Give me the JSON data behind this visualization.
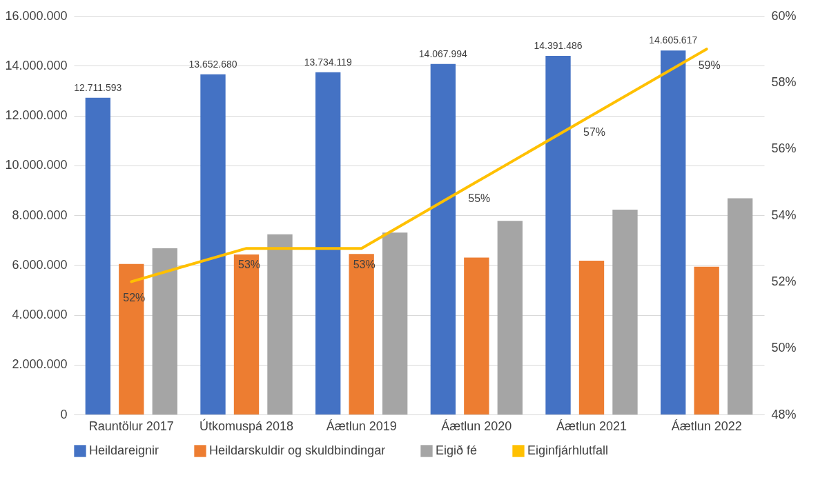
{
  "chart_data": {
    "type": "bar",
    "categories": [
      "Rauntölur 2017",
      "Útkomuspá 2018",
      "Áætlun 2019",
      "Áætlun 2020",
      "Áætlun 2021",
      "Áætlun 2022"
    ],
    "series": [
      {
        "name": "Heildareignir",
        "color": "#4472c4",
        "values": [
          12711593,
          13652680,
          13734119,
          14067994,
          14391486,
          14605617
        ],
        "value_labels": [
          "12.711.593",
          "13.652.680",
          "13.734.119",
          "14.067.994",
          "14.391.486",
          "14.605.617"
        ]
      },
      {
        "name": "Heildarskuldir og skuldbindingar",
        "color": "#ed7d31",
        "values": [
          6040000,
          6420000,
          6440000,
          6300000,
          6170000,
          5930000
        ]
      },
      {
        "name": "Eigið fé",
        "color": "#a5a5a5",
        "values": [
          6670000,
          7230000,
          7300000,
          7770000,
          8220000,
          8680000
        ]
      },
      {
        "name": "Eiginfjárhlutfall",
        "type": "line",
        "axis": "y2",
        "color": "#ffc000",
        "values": [
          52,
          53,
          53,
          55,
          57,
          59
        ],
        "value_labels": [
          "52%",
          "53%",
          "53%",
          "55%",
          "57%",
          "59%"
        ]
      }
    ],
    "ylim": [
      0,
      16000000
    ],
    "yticks": [
      {
        "value": 0,
        "label": "0"
      },
      {
        "value": 2000000,
        "label": "2.000.000"
      },
      {
        "value": 4000000,
        "label": "4.000.000"
      },
      {
        "value": 6000000,
        "label": "6.000.000"
      },
      {
        "value": 8000000,
        "label": "8.000.000"
      },
      {
        "value": 10000000,
        "label": "10.000.000"
      },
      {
        "value": 12000000,
        "label": "12.000.000"
      },
      {
        "value": 14000000,
        "label": "14.000.000"
      },
      {
        "value": 16000000,
        "label": "16.000.000"
      }
    ],
    "y2lim": [
      48,
      60
    ],
    "y2ticks": [
      {
        "value": 48,
        "label": "48%"
      },
      {
        "value": 50,
        "label": "50%"
      },
      {
        "value": 52,
        "label": "52%"
      },
      {
        "value": 54,
        "label": "54%"
      },
      {
        "value": 56,
        "label": "56%"
      },
      {
        "value": 58,
        "label": "58%"
      },
      {
        "value": 60,
        "label": "60%"
      }
    ],
    "grid": "y",
    "legend": "bottom"
  }
}
